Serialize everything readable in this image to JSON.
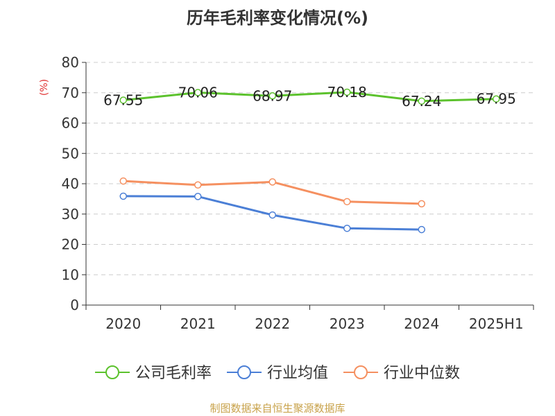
{
  "chart_data": {
    "type": "line",
    "title": "历年毛利率变化情况(%)",
    "ylabel": "(%)",
    "xlabel": "",
    "categories": [
      "2020",
      "2021",
      "2022",
      "2023",
      "2024",
      "2025H1"
    ],
    "ylim": [
      0,
      80
    ],
    "yticks": [
      0,
      10,
      20,
      30,
      40,
      50,
      60,
      70,
      80
    ],
    "grid": true,
    "legend_position": "bottom",
    "series": [
      {
        "name": "公司毛利率",
        "color": "#5cc22d",
        "values": [
          67.55,
          70.06,
          68.97,
          70.18,
          67.24,
          67.95
        ],
        "labels": [
          "67.55",
          "70.06",
          "68.97",
          "70.18",
          "67.24",
          "67.95"
        ]
      },
      {
        "name": "行业均值",
        "color": "#4b7fd6",
        "values": [
          35.9,
          35.8,
          29.7,
          25.3,
          24.9,
          null
        ]
      },
      {
        "name": "行业中位数",
        "color": "#f59060",
        "values": [
          40.9,
          39.6,
          40.6,
          34.1,
          33.4,
          null
        ]
      }
    ]
  },
  "source_text": "制图数据来自恒生聚源数据库"
}
